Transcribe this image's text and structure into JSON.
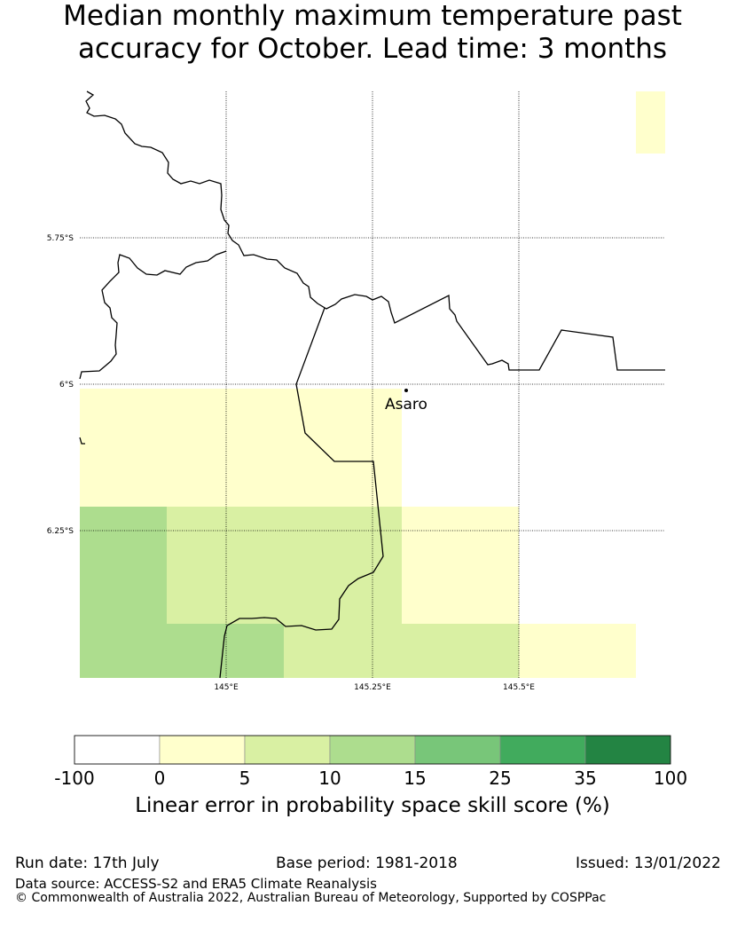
{
  "title": {
    "line1": "Median monthly maximum temperature past",
    "line2": "accuracy for October. Lead time: 3 months"
  },
  "map": {
    "lat_labels": [
      "5.75°S",
      "6°S",
      "6.25°S"
    ],
    "lon_labels": [
      "145°E",
      "145.25°E",
      "145.5°E"
    ],
    "place": "Asaro"
  },
  "colorbar": {
    "ticks": [
      "-100",
      "0",
      "5",
      "10",
      "15",
      "25",
      "35",
      "100"
    ],
    "colors": [
      "#ffffff",
      "#ffffcc",
      "#d9f0a3",
      "#addd8e",
      "#78c679",
      "#41ab5d",
      "#238443"
    ],
    "label": "Linear error in probability space skill score (%)"
  },
  "footer": {
    "run_date": "Run date: 17th July",
    "base_period": "Base period: 1981-2018",
    "issued": "Issued: 13/01/2022",
    "data_source": "Data source: ACCESS-S2 and ERA5 Climate Reanalysis",
    "copyright": "© Commonwealth of Australia 2022, Australian Bureau of Meteorology, Supported by COSPPac"
  }
}
